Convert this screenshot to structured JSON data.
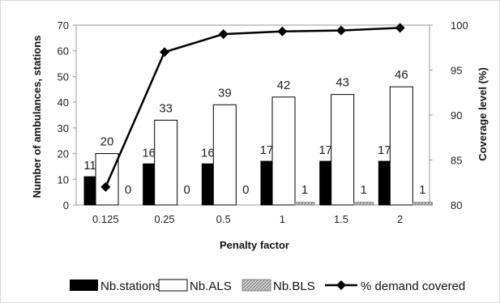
{
  "chart_data": {
    "type": "bar",
    "categories": [
      "0.125",
      "0.25",
      "0.5",
      "1",
      "1.5",
      "2"
    ],
    "xlabel": "Penalty factor",
    "ylabel": "Number of ambulances, stations",
    "ylabel_right": "Coverage level (%)",
    "ylim": [
      0,
      70
    ],
    "yticks": [
      "0",
      "10",
      "20",
      "30",
      "40",
      "50",
      "60",
      "70"
    ],
    "ylim_right": [
      80,
      100
    ],
    "yticks_right": [
      "80",
      "85",
      "90",
      "95",
      "100"
    ],
    "grid": "none",
    "legend_position": "bottom",
    "series": [
      {
        "name": "Nb.stations",
        "kind": "bar",
        "axis": "left",
        "color": "#000000",
        "values": [
          11,
          16,
          16,
          17,
          17,
          17
        ],
        "labels": [
          "11",
          "16",
          "16",
          "17",
          "17",
          "17"
        ]
      },
      {
        "name": "Nb.ALS",
        "kind": "bar",
        "axis": "left",
        "color": "#ffffff",
        "values": [
          20,
          33,
          39,
          42,
          43,
          46
        ],
        "labels": [
          "20",
          "33",
          "39",
          "42",
          "43",
          "46"
        ]
      },
      {
        "name": "Nb.BLS",
        "kind": "bar",
        "axis": "left",
        "color": "#bfbfbf",
        "values": [
          0,
          0,
          0,
          1,
          1,
          1
        ],
        "labels": [
          "0",
          "0",
          "0",
          "1",
          "1",
          "1"
        ]
      },
      {
        "name": "% demand covered",
        "kind": "line",
        "axis": "right",
        "color": "#000000",
        "values": [
          82,
          97,
          99,
          99.3,
          99.4,
          99.7
        ]
      }
    ]
  }
}
